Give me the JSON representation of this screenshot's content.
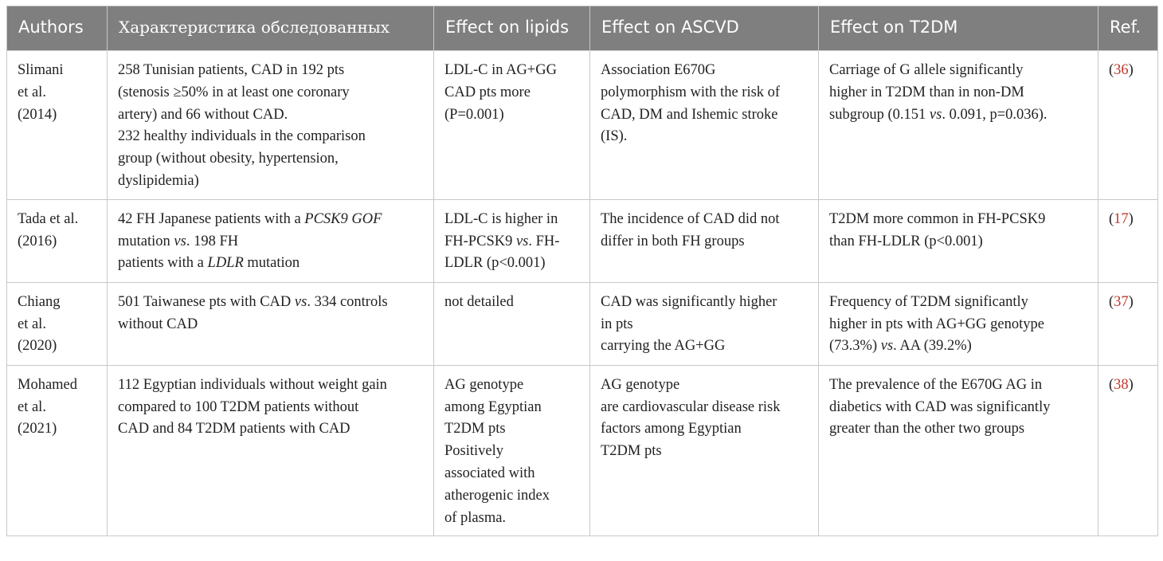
{
  "table": {
    "headers": [
      "Authors",
      "Характеристика обследованных",
      "Effect on lipids",
      "Effect on ASCVD",
      "Effect on T2DM",
      "Ref."
    ],
    "rows": [
      {
        "authors": "Slimani\net al.\n(2014)",
        "subjects": [
          {
            "t": "258 Tunisian patients, CAD in 192 pts\n(stenosis ≥50% in at least one coronary\nartery) and 66 without CAD.\n232 healthy individuals in the comparison\ngroup (without obesity, hypertension,\ndyslipidemia)",
            "i": false
          }
        ],
        "lipids": [
          {
            "t": "LDL-C in AG+GG\nCAD pts more\n(P=0.001)",
            "i": false
          }
        ],
        "ascvd": [
          {
            "t": "Association E670G\npolymorphism with the risk of\nCAD, DM and Ishemic stroke\n(IS).",
            "i": false
          }
        ],
        "t2dm": [
          {
            "t": "Carriage of G allele significantly\nhigher in T2DM than in non-DM\nsubgroup (0.151 ",
            "i": false
          },
          {
            "t": "vs",
            "i": true
          },
          {
            "t": ". 0.091, p=0.036).",
            "i": false
          }
        ],
        "ref_open": "(",
        "ref_num": "36",
        "ref_close": ")"
      },
      {
        "authors": "Tada et al.\n(2016)",
        "subjects": [
          {
            "t": "42 FH Japanese patients with a ",
            "i": false
          },
          {
            "t": "PCSK9 GOF",
            "i": true
          },
          {
            "t": "\nmutation ",
            "i": false
          },
          {
            "t": "vs",
            "i": true
          },
          {
            "t": ". 198 FH\npatients with a ",
            "i": false
          },
          {
            "t": "LDLR",
            "i": true
          },
          {
            "t": " mutation",
            "i": false
          }
        ],
        "lipids": [
          {
            "t": "LDL-C is higher in\nFH-PCSK9 ",
            "i": false
          },
          {
            "t": "vs",
            "i": true
          },
          {
            "t": ". FH-\nLDLR (p<0.001)",
            "i": false
          }
        ],
        "ascvd": [
          {
            "t": "The incidence of CAD did not\ndiffer in both FH groups",
            "i": false
          }
        ],
        "t2dm": [
          {
            "t": "T2DM more common in FH-PCSK9\nthan FH-LDLR (p<0.001)",
            "i": false
          }
        ],
        "ref_open": "(",
        "ref_num": "17",
        "ref_close": ")"
      },
      {
        "authors": "Chiang\net al.\n(2020)",
        "subjects": [
          {
            "t": "501 Taiwanese pts with CAD ",
            "i": false
          },
          {
            "t": "vs",
            "i": true
          },
          {
            "t": ". 334 controls\nwithout CAD",
            "i": false
          }
        ],
        "lipids": [
          {
            "t": "not detailed",
            "i": false
          }
        ],
        "ascvd": [
          {
            "t": "CAD was significantly higher\nin pts\ncarrying the AG+GG",
            "i": false
          }
        ],
        "t2dm": [
          {
            "t": "Frequency of T2DM significantly\nhigher in pts with AG+GG genotype\n(73.3%) ",
            "i": false
          },
          {
            "t": "vs",
            "i": true
          },
          {
            "t": ". AA (39.2%)",
            "i": false
          }
        ],
        "ref_open": "(",
        "ref_num": "37",
        "ref_close": ")"
      },
      {
        "authors": "Mohamed\net al.\n(2021)",
        "subjects": [
          {
            "t": "112 Egyptian individuals without weight gain\ncompared to 100 T2DM patients without\nCAD and 84 T2DM patients with CAD",
            "i": false
          }
        ],
        "lipids": [
          {
            "t": "AG genotype\namong Egyptian\nT2DM pts\nPositively\nassociated with\natherogenic index\nof plasma.",
            "i": false
          }
        ],
        "ascvd": [
          {
            "t": "AG genotype\nare cardiovascular disease risk\nfactors among Egyptian\nT2DM pts",
            "i": false
          }
        ],
        "t2dm": [
          {
            "t": "The prevalence of the E670G AG in\ndiabetics with CAD was significantly\ngreater than the other two groups",
            "i": false
          }
        ],
        "ref_open": "(",
        "ref_num": "38",
        "ref_close": ")"
      }
    ]
  }
}
